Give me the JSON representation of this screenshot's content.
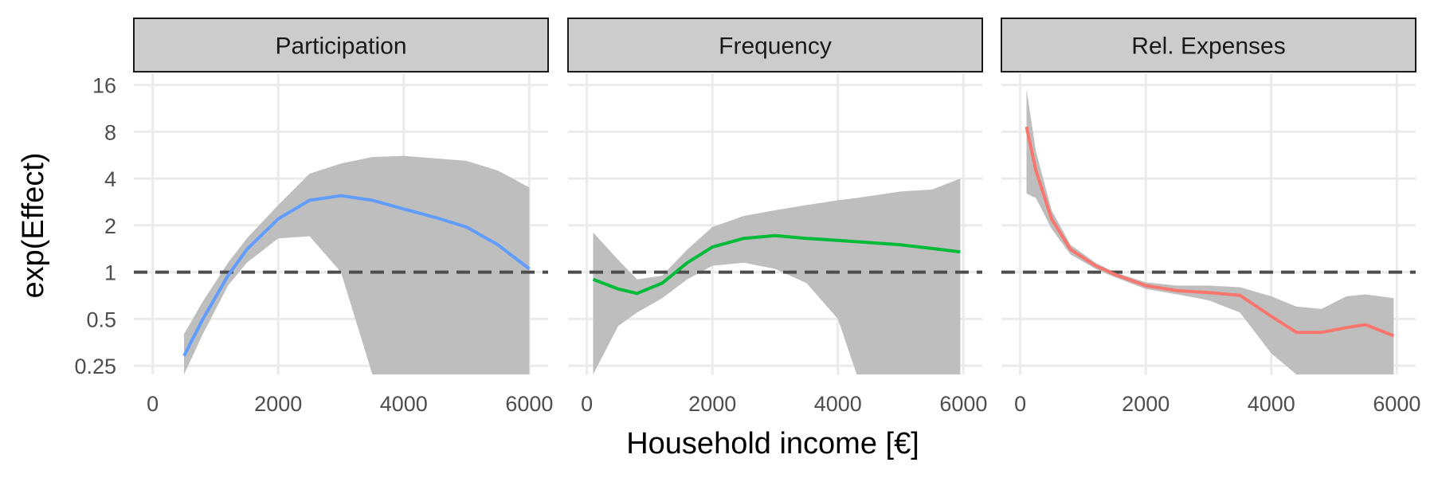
{
  "chart_data": {
    "type": "line",
    "layout": "faceted-3-panels",
    "xlabel": "Household income [€]",
    "ylabel": "exp(Effect)",
    "xlim": [
      -300,
      6300
    ],
    "ylim": [
      0.22,
      19
    ],
    "yscale": "log2",
    "xticks": [
      0,
      2000,
      4000,
      6000
    ],
    "xtick_labels": [
      "0",
      "2000",
      "4000",
      "6000"
    ],
    "yticks": [
      0.25,
      0.5,
      1,
      2,
      4,
      8,
      16
    ],
    "ytick_labels": [
      "0.25",
      "0.5",
      "1",
      "2",
      "4",
      "8",
      "16"
    ],
    "reference_line": {
      "y": 1,
      "style": "dashed"
    },
    "grid": true,
    "facets": [
      {
        "label": "Participation",
        "color": "#619CFF",
        "points": [
          {
            "x": 500,
            "y": 0.29,
            "lower": 0.22,
            "upper": 0.4
          },
          {
            "x": 800,
            "y": 0.5,
            "lower": 0.4,
            "upper": 0.65
          },
          {
            "x": 1200,
            "y": 0.95,
            "lower": 0.82,
            "upper": 1.15
          },
          {
            "x": 1500,
            "y": 1.4,
            "lower": 1.15,
            "upper": 1.65
          },
          {
            "x": 2000,
            "y": 2.2,
            "lower": 1.65,
            "upper": 2.7
          },
          {
            "x": 2500,
            "y": 2.9,
            "lower": 1.7,
            "upper": 4.3
          },
          {
            "x": 3000,
            "y": 3.1,
            "lower": 1.0,
            "upper": 5.0
          },
          {
            "x": 3500,
            "y": 2.9,
            "lower": 0.22,
            "upper": 5.5
          },
          {
            "x": 4000,
            "y": 2.55,
            "lower": 0.22,
            "upper": 5.6
          },
          {
            "x": 4500,
            "y": 2.25,
            "lower": 0.22,
            "upper": 5.4
          },
          {
            "x": 5000,
            "y": 1.95,
            "lower": 0.22,
            "upper": 5.2
          },
          {
            "x": 5500,
            "y": 1.5,
            "lower": 0.22,
            "upper": 4.5
          },
          {
            "x": 6000,
            "y": 1.05,
            "lower": 0.22,
            "upper": 3.5
          }
        ]
      },
      {
        "label": "Frequency",
        "color": "#00BA38",
        "points": [
          {
            "x": 100,
            "y": 0.9,
            "lower": 0.22,
            "upper": 1.8
          },
          {
            "x": 500,
            "y": 0.78,
            "lower": 0.45,
            "upper": 1.2
          },
          {
            "x": 800,
            "y": 0.73,
            "lower": 0.55,
            "upper": 0.9
          },
          {
            "x": 1200,
            "y": 0.85,
            "lower": 0.68,
            "upper": 0.95
          },
          {
            "x": 1600,
            "y": 1.15,
            "lower": 0.9,
            "upper": 1.4
          },
          {
            "x": 2000,
            "y": 1.45,
            "lower": 1.1,
            "upper": 1.95
          },
          {
            "x": 2500,
            "y": 1.65,
            "lower": 1.15,
            "upper": 2.3
          },
          {
            "x": 3000,
            "y": 1.72,
            "lower": 1.05,
            "upper": 2.5
          },
          {
            "x": 3500,
            "y": 1.65,
            "lower": 0.85,
            "upper": 2.7
          },
          {
            "x": 4000,
            "y": 1.6,
            "lower": 0.5,
            "upper": 2.9
          },
          {
            "x": 4300,
            "y": 1.57,
            "lower": 0.22,
            "upper": 3.0
          },
          {
            "x": 5000,
            "y": 1.5,
            "lower": 0.22,
            "upper": 3.3
          },
          {
            "x": 5500,
            "y": 1.42,
            "lower": 0.22,
            "upper": 3.4
          },
          {
            "x": 5950,
            "y": 1.35,
            "lower": 0.22,
            "upper": 4.0
          }
        ]
      },
      {
        "label": "Rel. Expenses",
        "color": "#F8766D",
        "points": [
          {
            "x": 100,
            "y": 8.6,
            "lower": 3.2,
            "upper": 15.0
          },
          {
            "x": 250,
            "y": 4.5,
            "lower": 3.0,
            "upper": 6.0
          },
          {
            "x": 500,
            "y": 2.2,
            "lower": 1.9,
            "upper": 2.5
          },
          {
            "x": 800,
            "y": 1.4,
            "lower": 1.3,
            "upper": 1.5
          },
          {
            "x": 1200,
            "y": 1.1,
            "lower": 1.05,
            "upper": 1.15
          },
          {
            "x": 1500,
            "y": 0.97,
            "lower": 0.93,
            "upper": 1.0
          },
          {
            "x": 2000,
            "y": 0.82,
            "lower": 0.78,
            "upper": 0.86
          },
          {
            "x": 2500,
            "y": 0.76,
            "lower": 0.72,
            "upper": 0.82
          },
          {
            "x": 3000,
            "y": 0.74,
            "lower": 0.66,
            "upper": 0.82
          },
          {
            "x": 3500,
            "y": 0.71,
            "lower": 0.55,
            "upper": 0.8
          },
          {
            "x": 4000,
            "y": 0.52,
            "lower": 0.3,
            "upper": 0.7
          },
          {
            "x": 4400,
            "y": 0.41,
            "lower": 0.22,
            "upper": 0.6
          },
          {
            "x": 4800,
            "y": 0.41,
            "lower": 0.22,
            "upper": 0.58
          },
          {
            "x": 5200,
            "y": 0.44,
            "lower": 0.22,
            "upper": 0.7
          },
          {
            "x": 5500,
            "y": 0.46,
            "lower": 0.22,
            "upper": 0.72
          },
          {
            "x": 5950,
            "y": 0.39,
            "lower": 0.22,
            "upper": 0.68
          }
        ]
      }
    ]
  }
}
